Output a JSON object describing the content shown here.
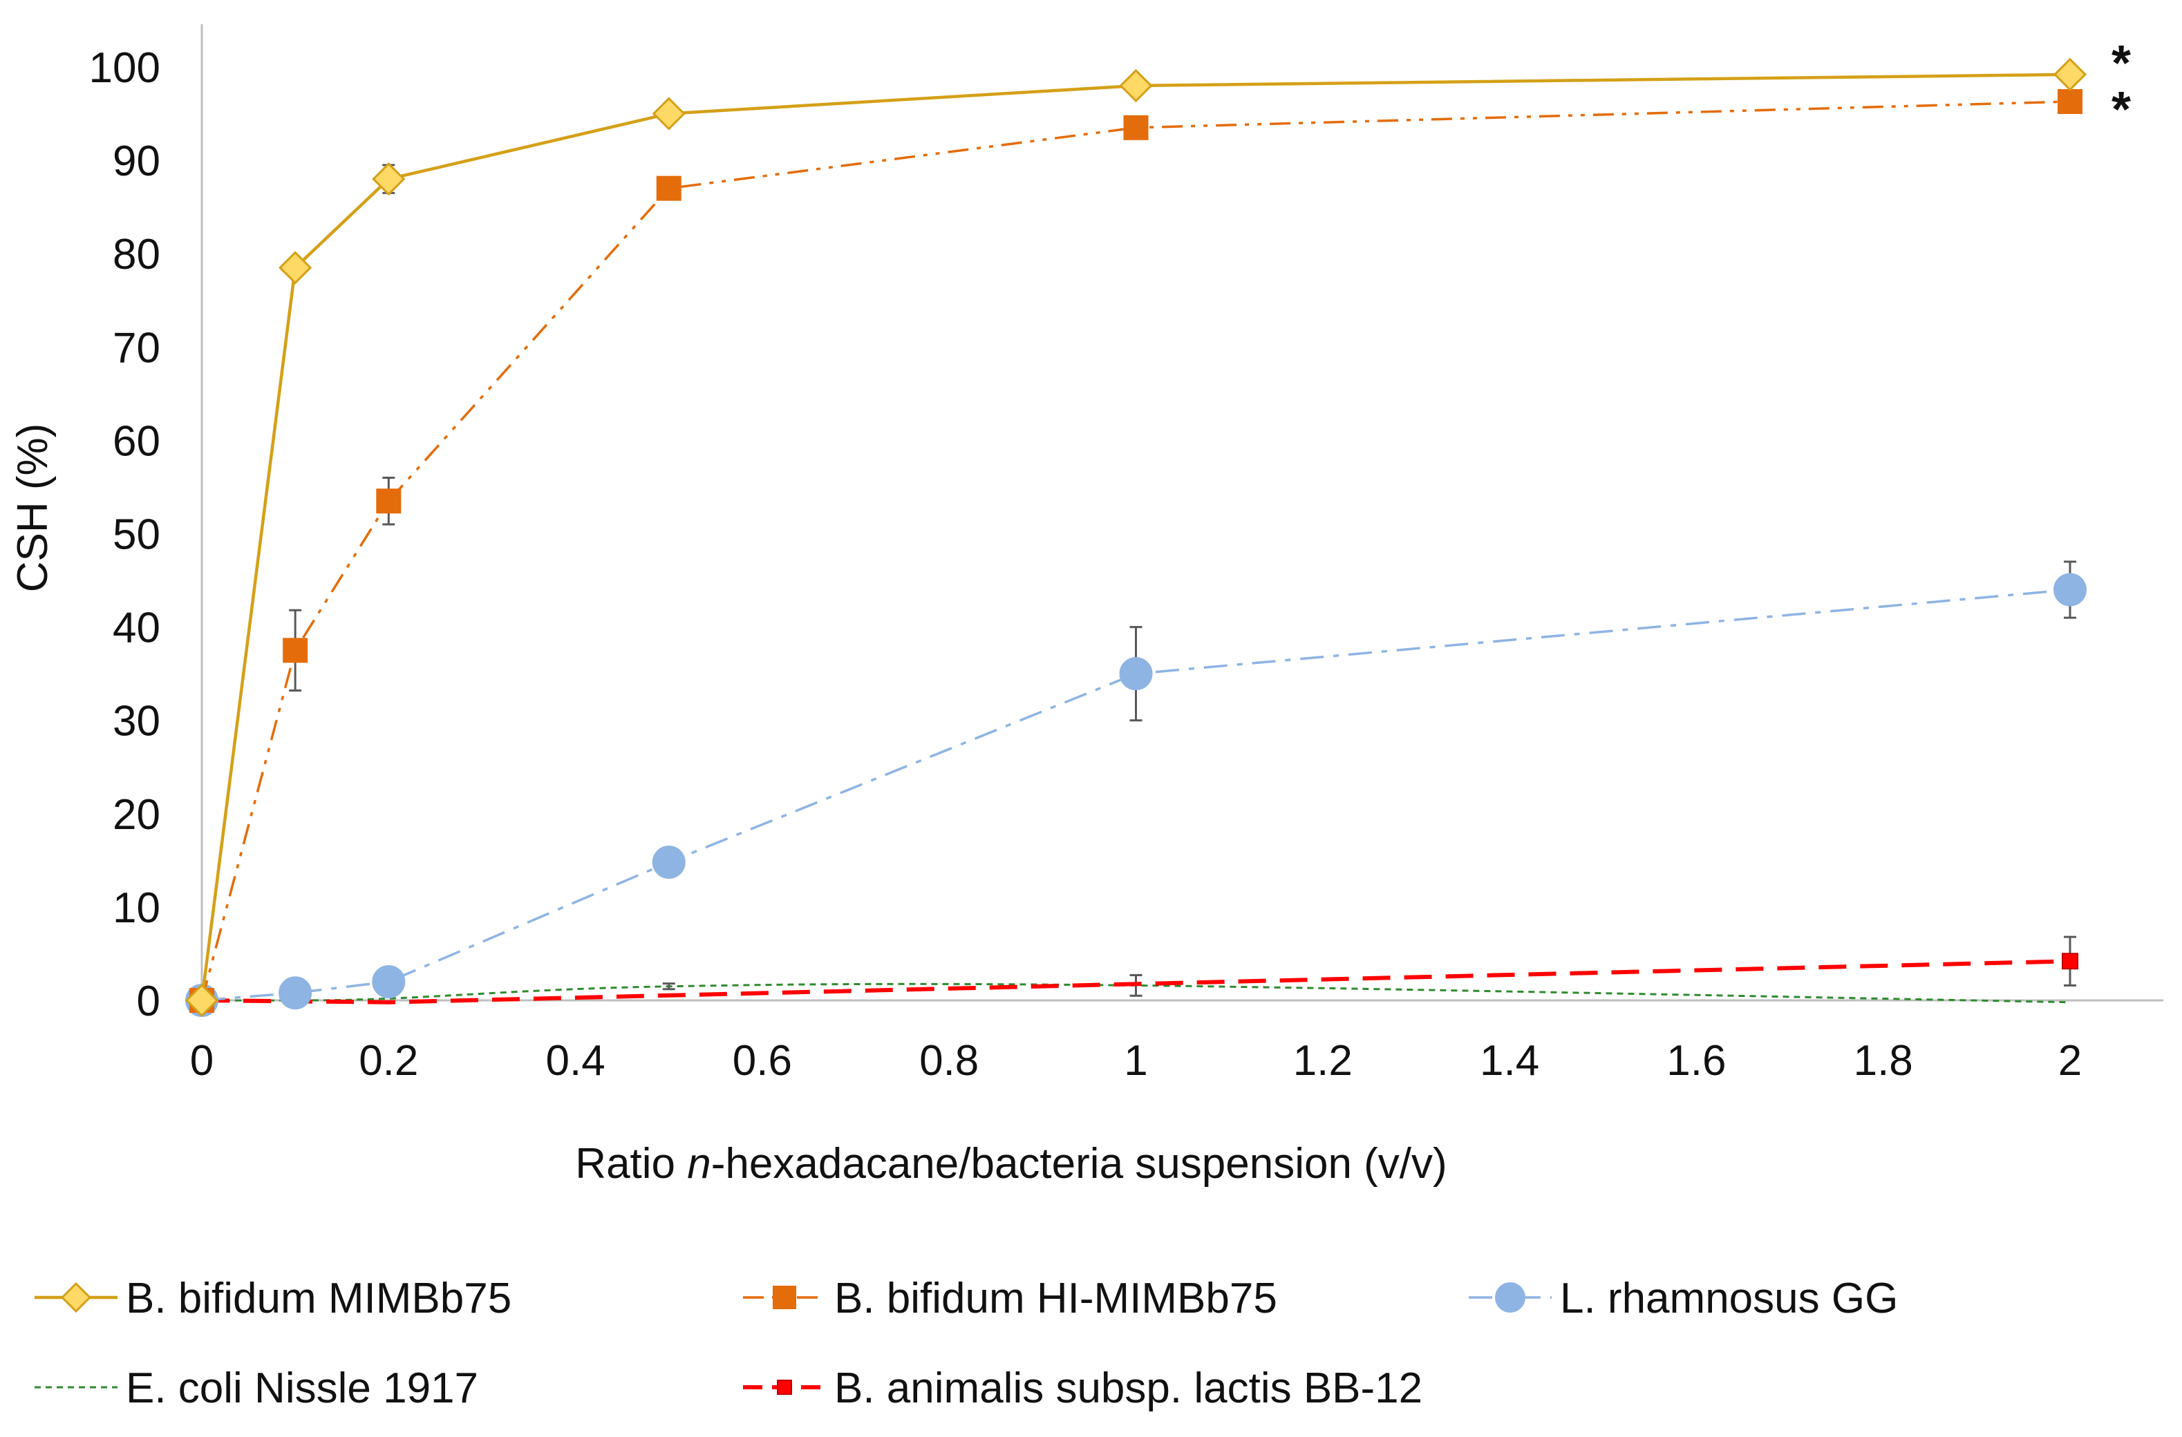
{
  "chart_data": {
    "type": "line",
    "title": "",
    "xlabel_parts": {
      "pre": "Ratio ",
      "italic": "n",
      "post": "-hexadacane/bacteria suspension (v/v)"
    },
    "ylabel": "CSH (%)",
    "xlim": [
      0,
      2
    ],
    "ylim": [
      0,
      100
    ],
    "x_ticks": [
      "0",
      "0.2",
      "0.4",
      "0.6",
      "0.8",
      "1",
      "1.2",
      "1.4",
      "1.6",
      "1.8",
      "2"
    ],
    "y_ticks": [
      "0",
      "10",
      "20",
      "30",
      "40",
      "50",
      "60",
      "70",
      "80",
      "90",
      "100"
    ],
    "x": [
      0,
      0.1,
      0.2,
      0.5,
      1,
      2
    ],
    "grid": false,
    "legend_position": "bottom",
    "series": [
      {
        "name": "B. bifidum MIMBb75",
        "values": [
          0,
          78.5,
          88,
          95,
          98,
          99.2
        ],
        "errors": [
          0,
          0,
          1.5,
          0,
          0,
          0
        ],
        "color": "#D4A017",
        "fill": "#FFD966",
        "marker": "diamond",
        "dash": "solid",
        "significance": "*"
      },
      {
        "name": "B. bifidum HI-MIMBb75",
        "values": [
          0,
          37.5,
          53.5,
          87,
          93.5,
          96.3
        ],
        "errors": [
          0,
          4.3,
          2.5,
          0,
          0,
          0
        ],
        "color": "#E46C0A",
        "fill": "#E46C0A",
        "marker": "square",
        "dash": "dash-dot-dot",
        "significance": "*"
      },
      {
        "name": "L. rhamnosus GG",
        "values": [
          0,
          0.8,
          2,
          14.8,
          35,
          44
        ],
        "errors": [
          0,
          0,
          0,
          0,
          5,
          3
        ],
        "color": "#8EB4E3",
        "fill": "#8EB4E3",
        "marker": "circle",
        "dash": "dash-dot",
        "significance": ""
      },
      {
        "name": "E. coli Nissle 1917",
        "values": [
          0,
          0,
          0.2,
          1.5,
          1.6,
          -0.2
        ],
        "errors": [
          0,
          0,
          0,
          0.3,
          1.1,
          0
        ],
        "color": "#2E8B2E",
        "fill": "#2E8B2E",
        "marker": "none",
        "dash": "dotted",
        "significance": ""
      },
      {
        "name": "B. animalis subsp. lactis BB-12",
        "values": [
          0,
          null,
          -0.2,
          null,
          null,
          4.2
        ],
        "errors": [
          0,
          0,
          0,
          0,
          0,
          2.6
        ],
        "color": "#FF0000",
        "fill": "#FF0000",
        "marker": "small-square",
        "dash": "dashed",
        "significance": ""
      }
    ]
  }
}
